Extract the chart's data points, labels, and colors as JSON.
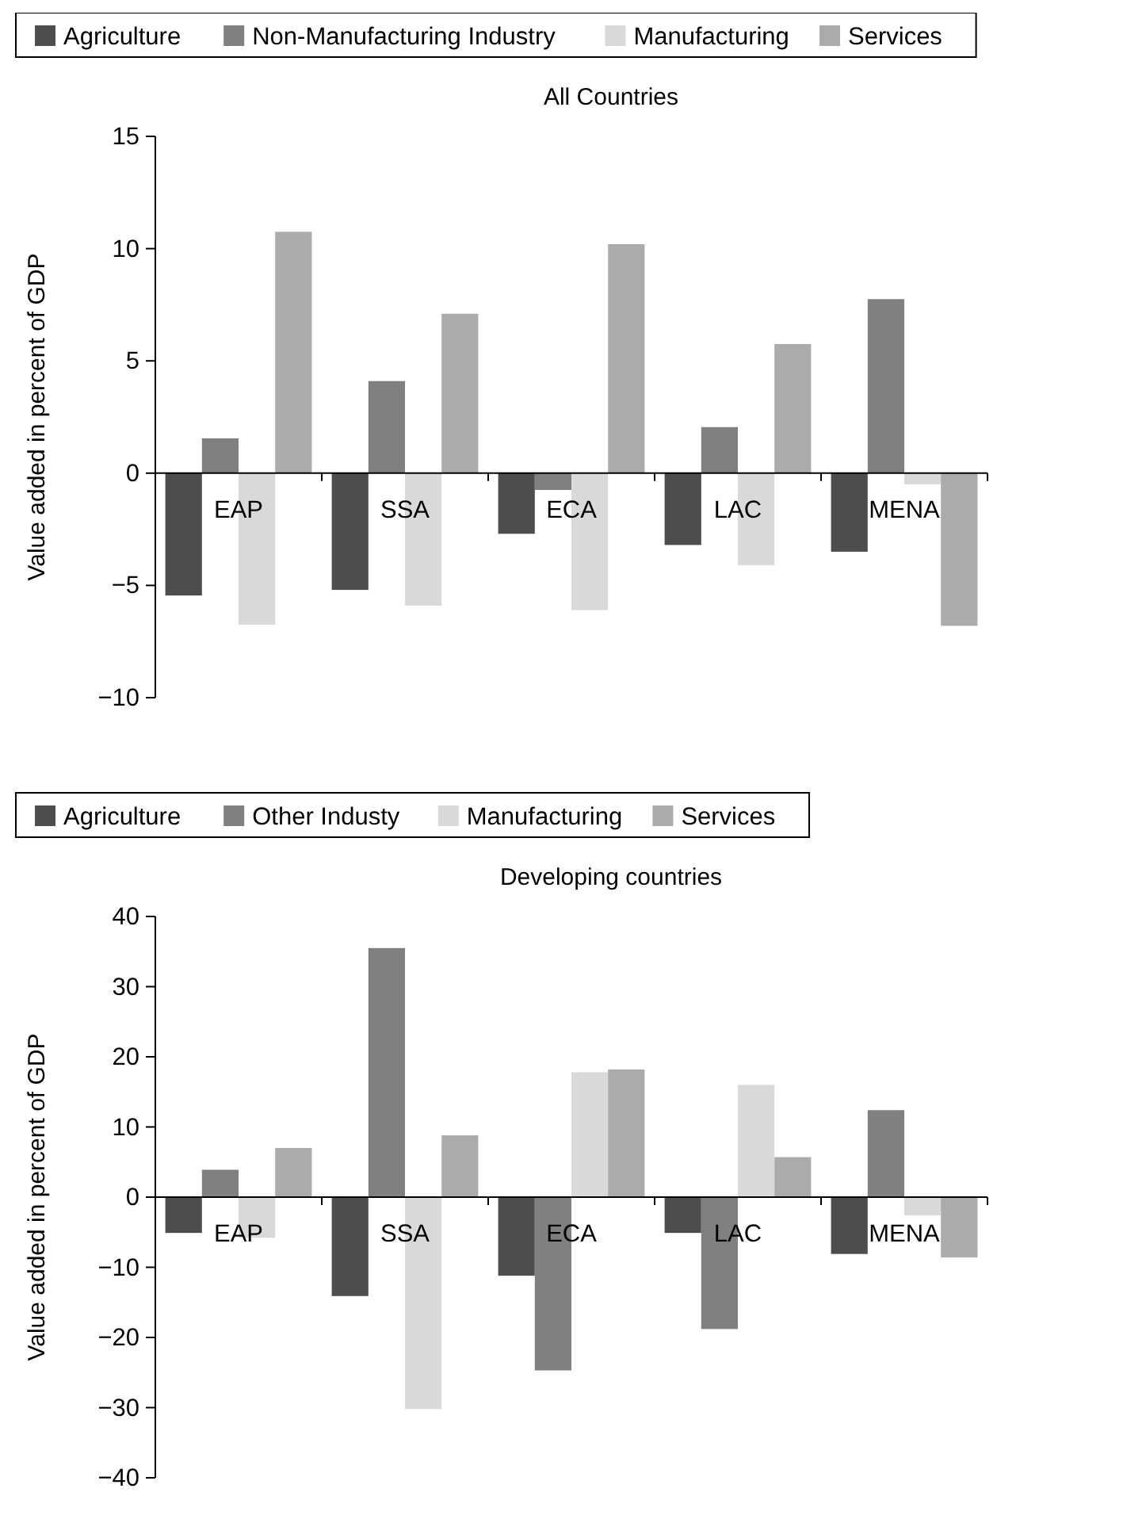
{
  "chart_data": [
    {
      "type": "bar",
      "title": "All Countries",
      "ylabel": "Value added in percent of GDP",
      "categories": [
        "EAP",
        "SSA",
        "ECA",
        "LAC",
        "MENA"
      ],
      "series": [
        {
          "name": "Agriculture",
          "color": "#4d4d4d",
          "values": [
            -5.45,
            -5.2,
            -2.7,
            -3.2,
            -3.5
          ]
        },
        {
          "name": "Non-Manufacturing Industry",
          "color": "#808080",
          "values": [
            1.55,
            4.1,
            -0.75,
            2.05,
            7.75
          ]
        },
        {
          "name": "Manufacturing",
          "color": "#d9d9d9",
          "values": [
            -6.75,
            -5.9,
            -6.1,
            -4.1,
            -0.5
          ]
        },
        {
          "name": "Services",
          "color": "#ababab",
          "values": [
            10.75,
            7.1,
            10.2,
            5.75,
            -6.8
          ]
        }
      ],
      "ylim": [
        -10,
        15
      ],
      "yticks": [
        -10,
        -5,
        0,
        5,
        10,
        15
      ],
      "grid": false,
      "legend": "top"
    },
    {
      "type": "bar",
      "title": "Developing countries",
      "ylabel": "Value added in percent of GDP",
      "categories": [
        "EAP",
        "SSA",
        "ECA",
        "LAC",
        "MENA"
      ],
      "series": [
        {
          "name": "Agriculture",
          "color": "#4d4d4d",
          "values": [
            -5.1,
            -14.1,
            -11.2,
            -5.1,
            -8.1
          ]
        },
        {
          "name": "Other Industy",
          "color": "#808080",
          "values": [
            3.9,
            35.5,
            -24.7,
            -18.8,
            12.4
          ]
        },
        {
          "name": "Manufacturing",
          "color": "#d9d9d9",
          "values": [
            -5.8,
            -30.2,
            17.8,
            16.0,
            -2.6
          ]
        },
        {
          "name": "Services",
          "color": "#ababab",
          "values": [
            7.0,
            8.8,
            18.2,
            5.7,
            -8.6
          ]
        }
      ],
      "ylim": [
        -40,
        40
      ],
      "yticks": [
        -40,
        -30,
        -20,
        -10,
        0,
        10,
        20,
        30,
        40
      ],
      "grid": false,
      "legend": "top"
    }
  ]
}
